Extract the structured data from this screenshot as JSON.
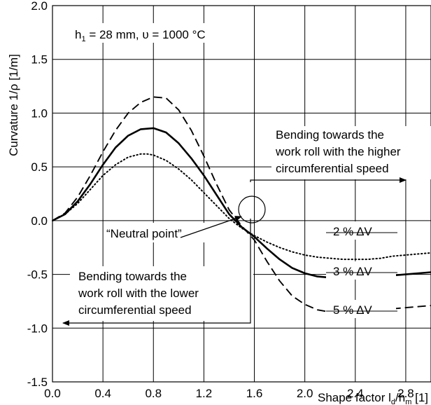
{
  "chart_data": {
    "type": "line",
    "xlabel": "Shape factor l",
    "xlabel_sub1": "d",
    "xlabel_mid": "/h",
    "xlabel_sub2": "m",
    "xlabel_unit": " [1]",
    "ylabel": "Curvature 1/ρ [1/m]",
    "xlim": [
      0,
      3.0
    ],
    "ylim": [
      -1.5,
      2.0
    ],
    "xticks": [
      0.0,
      0.4,
      0.8,
      1.2,
      1.6,
      2.0,
      2.4,
      2.8
    ],
    "xtick_labels": [
      "0.0",
      "0.4",
      "0.8",
      "1.2",
      "1.6",
      "2.0",
      "2.4",
      "2.8"
    ],
    "yticks": [
      -1.5,
      -1.0,
      -0.5,
      0.0,
      0.5,
      1.0,
      1.5,
      2.0
    ],
    "ytick_labels": [
      "-1.5",
      "-1.0",
      "-0.5",
      "0.0",
      "0.5",
      "1.0",
      "1.5",
      "2.0"
    ],
    "grid": true,
    "condition": {
      "h_prefix": "h",
      "h_sub": "1",
      "text": " = 28 mm, υ = 1000 °C"
    },
    "series": [
      {
        "name": "2 % ΔV",
        "style": "dotted",
        "x": [
          0,
          0.1,
          0.2,
          0.3,
          0.4,
          0.5,
          0.6,
          0.7,
          0.75,
          0.8,
          0.9,
          1.0,
          1.1,
          1.2,
          1.3,
          1.4,
          1.5,
          1.6,
          1.7,
          1.8,
          1.9,
          2.0,
          2.1,
          2.2,
          2.3,
          2.4,
          2.5,
          2.6,
          2.7,
          2.8,
          2.9,
          3.0
        ],
        "y": [
          0,
          0.06,
          0.16,
          0.29,
          0.42,
          0.52,
          0.59,
          0.62,
          0.62,
          0.61,
          0.56,
          0.48,
          0.38,
          0.26,
          0.14,
          0.02,
          -0.07,
          -0.14,
          -0.2,
          -0.25,
          -0.29,
          -0.32,
          -0.34,
          -0.35,
          -0.36,
          -0.36,
          -0.36,
          -0.35,
          -0.33,
          -0.32,
          -0.31,
          -0.3
        ]
      },
      {
        "name": "3 % ΔV",
        "style": "solid",
        "x": [
          0,
          0.1,
          0.2,
          0.3,
          0.4,
          0.5,
          0.6,
          0.7,
          0.8,
          0.9,
          1.0,
          1.1,
          1.2,
          1.3,
          1.4,
          1.5,
          1.6,
          1.7,
          1.8,
          1.9,
          2.0,
          2.1,
          2.2,
          2.3,
          2.4,
          2.5,
          2.6,
          2.7,
          2.8,
          2.9,
          3.0
        ],
        "y": [
          0,
          0.06,
          0.18,
          0.34,
          0.52,
          0.68,
          0.79,
          0.85,
          0.86,
          0.82,
          0.72,
          0.58,
          0.42,
          0.24,
          0.06,
          -0.06,
          -0.15,
          -0.26,
          -0.36,
          -0.44,
          -0.49,
          -0.52,
          -0.53,
          -0.54,
          -0.54,
          -0.53,
          -0.52,
          -0.51,
          -0.5,
          -0.49,
          -0.48
        ]
      },
      {
        "name": "5 % ΔV",
        "style": "dashed",
        "x": [
          0,
          0.1,
          0.2,
          0.3,
          0.4,
          0.5,
          0.6,
          0.7,
          0.8,
          0.9,
          1.0,
          1.1,
          1.2,
          1.3,
          1.4,
          1.5,
          1.6,
          1.7,
          1.8,
          1.9,
          2.0,
          2.1,
          2.2,
          2.3,
          2.4,
          2.5,
          2.6,
          2.7,
          2.8,
          2.9,
          3.0
        ],
        "y": [
          0,
          0.07,
          0.22,
          0.42,
          0.64,
          0.84,
          1.0,
          1.1,
          1.15,
          1.14,
          1.03,
          0.84,
          0.6,
          0.34,
          0.1,
          -0.05,
          -0.18,
          -0.38,
          -0.56,
          -0.7,
          -0.78,
          -0.83,
          -0.85,
          -0.85,
          -0.85,
          -0.84,
          -0.83,
          -0.82,
          -0.81,
          -0.8,
          -0.79
        ]
      }
    ],
    "annotations": {
      "neutral_point": "“Neutral  point”",
      "higher_line1": "Bending towards the",
      "higher_line2": "work roll with the higher",
      "higher_line3": "circumferential speed",
      "lower_line1": "Bending towards the",
      "lower_line2": "work roll with the lower",
      "lower_line3": "circumferential speed"
    }
  }
}
